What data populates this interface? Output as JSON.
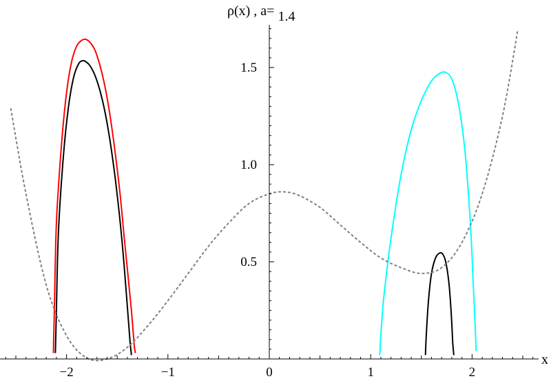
{
  "chart_data": {
    "type": "line",
    "title": {
      "main": "ρ(x) , a=",
      "value": "1.4"
    },
    "xlabel": "x",
    "ylabel": "",
    "xlim": [
      -2.65,
      2.65
    ],
    "ylim": [
      0,
      1.72
    ],
    "x_ticks": [
      {
        "value": -2,
        "label": "−2"
      },
      {
        "value": -1,
        "label": "−1"
      },
      {
        "value": 0,
        "label": "0"
      },
      {
        "value": 1,
        "label": "1"
      },
      {
        "value": 2,
        "label": "2"
      }
    ],
    "y_ticks": [
      {
        "value": 0.5,
        "label": "0.5"
      },
      {
        "value": 1.0,
        "label": "1.0"
      },
      {
        "value": 1.5,
        "label": "1.5"
      }
    ],
    "grid": false,
    "series": [
      {
        "style": "solid",
        "color": "#ff0000",
        "x": [
          -2.13,
          -2.12,
          -2.1,
          -2.05,
          -2.0,
          -1.95,
          -1.9,
          -1.85,
          -1.81,
          -1.77,
          -1.72,
          -1.67,
          -1.62,
          -1.57,
          -1.52,
          -1.47,
          -1.43,
          -1.39,
          -1.36,
          -1.34,
          -1.33,
          -1.32
        ],
        "y": [
          0.03,
          0.25,
          0.7,
          1.1,
          1.37,
          1.53,
          1.61,
          1.64,
          1.645,
          1.63,
          1.59,
          1.51,
          1.4,
          1.25,
          1.06,
          0.84,
          0.62,
          0.41,
          0.25,
          0.12,
          0.06,
          0.03
        ]
      },
      {
        "style": "solid",
        "color": "#000000",
        "x": [
          -2.11,
          -2.1,
          -2.08,
          -2.03,
          -1.98,
          -1.93,
          -1.88,
          -1.84,
          -1.81,
          -1.77,
          -1.72,
          -1.67,
          -1.62,
          -1.57,
          -1.52,
          -1.47,
          -1.43,
          -1.4,
          -1.38,
          -1.37,
          -1.36
        ],
        "y": [
          0.03,
          0.25,
          0.65,
          1.05,
          1.3,
          1.45,
          1.52,
          1.535,
          1.53,
          1.51,
          1.46,
          1.38,
          1.27,
          1.12,
          0.93,
          0.7,
          0.47,
          0.27,
          0.13,
          0.07,
          0.02
        ]
      },
      {
        "style": "solid",
        "color": "#00ffff",
        "x": [
          1.09,
          1.1,
          1.13,
          1.2,
          1.3,
          1.4,
          1.5,
          1.6,
          1.68,
          1.74,
          1.8,
          1.86,
          1.92,
          1.96,
          1.99,
          2.01,
          2.03,
          2.04
        ],
        "y": [
          0.02,
          0.12,
          0.32,
          0.62,
          0.95,
          1.18,
          1.33,
          1.43,
          1.47,
          1.475,
          1.44,
          1.33,
          1.12,
          0.88,
          0.64,
          0.4,
          0.18,
          0.04
        ]
      },
      {
        "style": "solid",
        "color": "#000000",
        "x": [
          1.54,
          1.55,
          1.57,
          1.6,
          1.64,
          1.68,
          1.71,
          1.74,
          1.77,
          1.79,
          1.8,
          1.81,
          1.82
        ],
        "y": [
          0.02,
          0.14,
          0.3,
          0.44,
          0.52,
          0.545,
          0.54,
          0.5,
          0.4,
          0.27,
          0.18,
          0.08,
          0.02
        ]
      },
      {
        "style": "dashed",
        "color": "#808080",
        "x": [
          -2.55,
          -2.4,
          -2.2,
          -2.0,
          -1.8,
          -1.6,
          -1.4,
          -1.2,
          -1.0,
          -0.8,
          -0.6,
          -0.4,
          -0.2,
          0.0,
          0.15,
          0.3,
          0.5,
          0.7,
          0.9,
          1.1,
          1.3,
          1.5,
          1.7,
          1.9,
          2.1,
          2.3,
          2.45
        ],
        "y": [
          1.29,
          0.85,
          0.38,
          0.12,
          0.005,
          0.0,
          0.06,
          0.17,
          0.3,
          0.44,
          0.58,
          0.7,
          0.8,
          0.85,
          0.86,
          0.84,
          0.78,
          0.69,
          0.6,
          0.52,
          0.47,
          0.44,
          0.47,
          0.6,
          0.85,
          1.25,
          1.69
        ]
      }
    ]
  }
}
